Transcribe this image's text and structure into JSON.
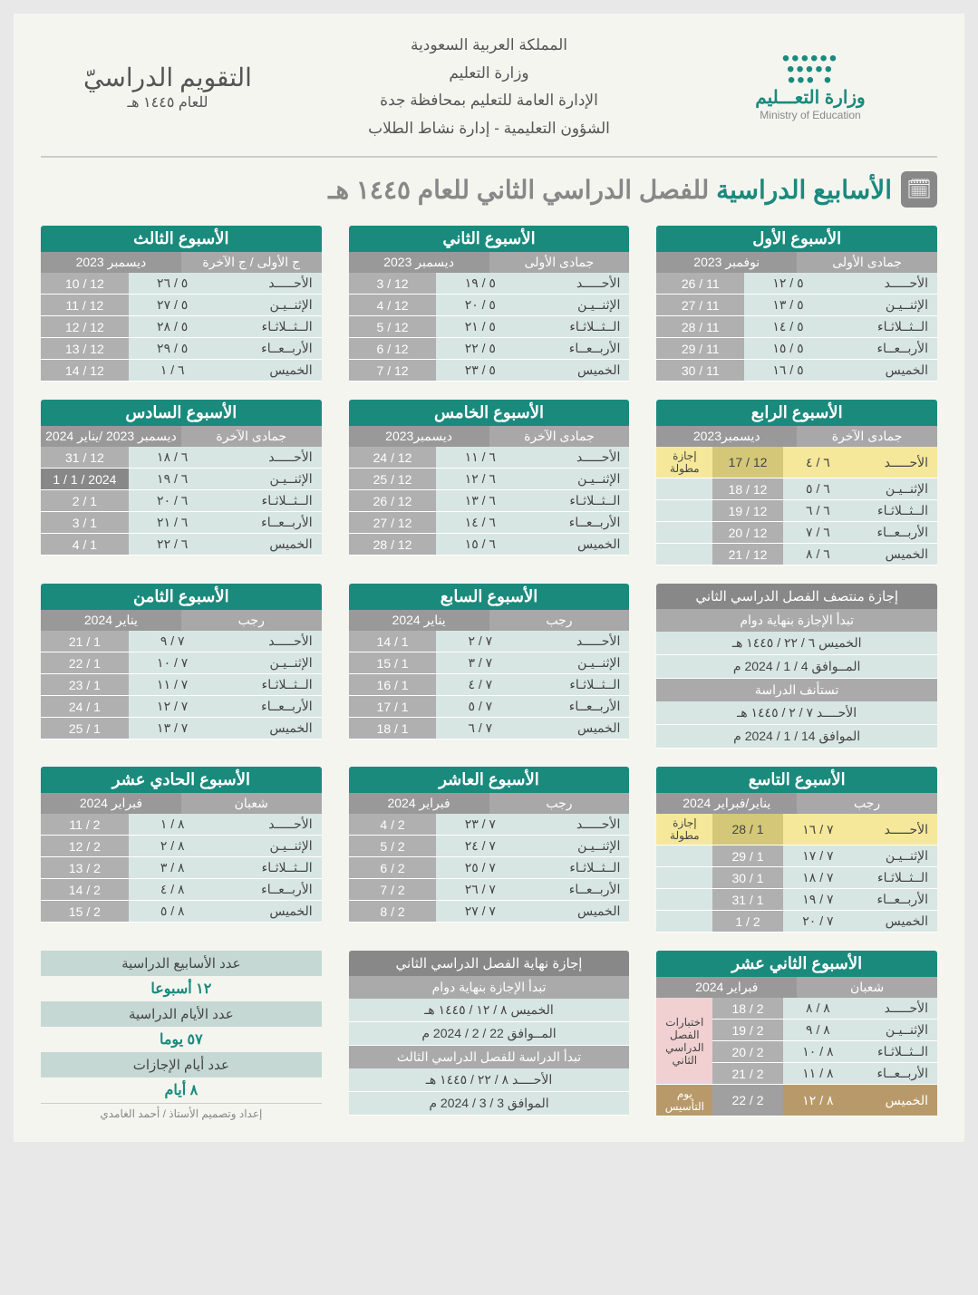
{
  "header": {
    "country": "المملكة العربية السعودية",
    "ministry": "وزارة التعليم",
    "dept1": "الإدارة العامة للتعليم بمحافظة جدة",
    "dept2": "الشؤون التعليمية - إدارة نشاط الطلاب",
    "ministry_label": "وزارة التعـــليم",
    "ministry_sub": "Ministry of Education",
    "cal_title": "التقويم الدراسيّ",
    "cal_sub": "للعام ١٤٤٥ هـ"
  },
  "main_title_a": "الأسابيع الدراسية",
  "main_title_b": " للفصل الدراسي الثاني للعام ١٤٤٥ هـ",
  "days": [
    "الأحـــــد",
    "الإثنــيـن",
    "الــثــلاثـاء",
    "الأربــعــاء",
    "الخميس"
  ],
  "weeks": [
    {
      "title": "الأسبوع الأول",
      "h_month": "جمادى الأولى",
      "g_month": "نوفمبر 2023",
      "rows": [
        {
          "h": "٥ / ١٢",
          "g": "11 / 26"
        },
        {
          "h": "٥ / ١٣",
          "g": "11 / 27"
        },
        {
          "h": "٥ / ١٤",
          "g": "11 / 28"
        },
        {
          "h": "٥ / ١٥",
          "g": "11 / 29"
        },
        {
          "h": "٥ / ١٦",
          "g": "11 / 30"
        }
      ]
    },
    {
      "title": "الأسبوع الثاني",
      "h_month": "جمادى الأولى",
      "g_month": "ديسمبر 2023",
      "rows": [
        {
          "h": "٥ / ١٩",
          "g": "12 / 3"
        },
        {
          "h": "٥ / ٢٠",
          "g": "12 / 4"
        },
        {
          "h": "٥ / ٢١",
          "g": "12 / 5"
        },
        {
          "h": "٥ / ٢٢",
          "g": "12 / 6"
        },
        {
          "h": "٥ / ٢٣",
          "g": "12 / 7"
        }
      ]
    },
    {
      "title": "الأسبوع الثالث",
      "h_month": "ج الأولى / ج الآخرة",
      "g_month": "ديسمبر 2023",
      "rows": [
        {
          "h": "٥ / ٢٦",
          "g": "12 / 10"
        },
        {
          "h": "٥ / ٢٧",
          "g": "12 / 11"
        },
        {
          "h": "٥ / ٢٨",
          "g": "12 / 12"
        },
        {
          "h": "٥ / ٢٩",
          "g": "12 / 13"
        },
        {
          "h": "٦ / ١",
          "g": "12 / 14"
        }
      ]
    },
    {
      "title": "الأسبوع الرابع",
      "h_month": "جمادى الآخرة",
      "g_month": "ديسمبر2023",
      "has_note": true,
      "rows": [
        {
          "h": "٦ / ٤",
          "g": "12 / 17",
          "note": "إجازة مطولة",
          "cls": "row-yellow"
        },
        {
          "h": "٦ / ٥",
          "g": "12 / 18"
        },
        {
          "h": "٦ / ٦",
          "g": "12 / 19"
        },
        {
          "h": "٦ / ٧",
          "g": "12 / 20"
        },
        {
          "h": "٦ / ٨",
          "g": "12 / 21"
        }
      ]
    },
    {
      "title": "الأسبوع الخامس",
      "h_month": "جمادى الآخرة",
      "g_month": "ديسمبر2023",
      "rows": [
        {
          "h": "٦ / ١١",
          "g": "12 / 24"
        },
        {
          "h": "٦ / ١٢",
          "g": "12 / 25"
        },
        {
          "h": "٦ / ١٣",
          "g": "12 / 26"
        },
        {
          "h": "٦ / ١٤",
          "g": "12 / 27"
        },
        {
          "h": "٦ / ١٥",
          "g": "12 / 28"
        }
      ]
    },
    {
      "title": "الأسبوع السادس",
      "h_month": "جمادى الآخرة",
      "g_month": "ديسمبر 2023 /يناير 2024",
      "rows": [
        {
          "h": "٦ / ١٨",
          "g": "12 / 31"
        },
        {
          "h": "٦ / ١٩",
          "g": "2024 / 1 / 1",
          "cls": "row-darkgreg"
        },
        {
          "h": "٦ / ٢٠",
          "g": "1 / 2"
        },
        {
          "h": "٦ / ٢١",
          "g": "1 / 3"
        },
        {
          "h": "٦ / ٢٢",
          "g": "1 / 4"
        }
      ]
    },
    {
      "title": "الأسبوع السابع",
      "h_month": "رجب",
      "g_month": "يناير 2024",
      "rows": [
        {
          "h": "٧ / ٢",
          "g": "1 / 14"
        },
        {
          "h": "٧ / ٣",
          "g": "1 / 15"
        },
        {
          "h": "٧ / ٤",
          "g": "1 / 16"
        },
        {
          "h": "٧ / ٥",
          "g": "1 / 17"
        },
        {
          "h": "٧ / ٦",
          "g": "1 / 18"
        }
      ]
    },
    {
      "title": "الأسبوع الثامن",
      "h_month": "رجب",
      "g_month": "يناير 2024",
      "rows": [
        {
          "h": "٧ / ٩",
          "g": "1 / 21"
        },
        {
          "h": "٧ / ١٠",
          "g": "1 / 22"
        },
        {
          "h": "٧ / ١١",
          "g": "1 / 23"
        },
        {
          "h": "٧ / ١٢",
          "g": "1 / 24"
        },
        {
          "h": "٧ / ١٣",
          "g": "1 / 25"
        }
      ]
    },
    {
      "title": "الأسبوع التاسع",
      "h_month": "رجب",
      "g_month": "يناير/فبراير 2024",
      "has_note": true,
      "rows": [
        {
          "h": "٧ / ١٦",
          "g": "1 / 28",
          "note": "إجازة مطولة",
          "cls": "row-yellow"
        },
        {
          "h": "٧ / ١٧",
          "g": "1 / 29"
        },
        {
          "h": "٧ / ١٨",
          "g": "1 / 30"
        },
        {
          "h": "٧ / ١٩",
          "g": "1 / 31"
        },
        {
          "h": "٧ / ٢٠",
          "g": "2 / 1"
        }
      ]
    },
    {
      "title": "الأسبوع العاشر",
      "h_month": "رجب",
      "g_month": "فبراير 2024",
      "rows": [
        {
          "h": "٧ / ٢٣",
          "g": "2 / 4"
        },
        {
          "h": "٧ / ٢٤",
          "g": "2 / 5"
        },
        {
          "h": "٧ / ٢٥",
          "g": "2 / 6"
        },
        {
          "h": "٧ / ٢٦",
          "g": "2 / 7"
        },
        {
          "h": "٧ / ٢٧",
          "g": "2 / 8"
        }
      ]
    },
    {
      "title": "الأسبوع الحادي عشر",
      "h_month": "شعبان",
      "g_month": "فبراير 2024",
      "rows": [
        {
          "h": "٨ / ١",
          "g": "2 / 11"
        },
        {
          "h": "٨ / ٢",
          "g": "2 / 12"
        },
        {
          "h": "٨ / ٣",
          "g": "2 / 13"
        },
        {
          "h": "٨ / ٤",
          "g": "2 / 14"
        },
        {
          "h": "٨ / ٥",
          "g": "2 / 15"
        }
      ]
    },
    {
      "title": "الأسبوع الثاني عشر",
      "h_month": "شعبان",
      "g_month": "فبراير 2024",
      "has_note": true,
      "note_span": "اختبارات الفصل الدراسي الثاني",
      "rows": [
        {
          "h": "٨ / ٨",
          "g": "2 / 18",
          "cls": "row-pink"
        },
        {
          "h": "٨ / ٩",
          "g": "2 / 19",
          "cls": "row-pink"
        },
        {
          "h": "٨ / ١٠",
          "g": "2 / 20",
          "cls": "row-pink"
        },
        {
          "h": "٨ / ١١",
          "g": "2 / 21",
          "cls": "row-pink"
        },
        {
          "h": "٨ / ١٢",
          "g": "2 / 22",
          "note": "يوم التأسيس",
          "cls": "row-brown"
        }
      ]
    }
  ],
  "mid_break": {
    "title": "إجازة منتصف الفصل الدراسي الثاني",
    "sub1": "تبدأ الإجازة بنهاية دوام",
    "r1": "الخميس   ٦ / ٢٢ / ١٤٤٥ هـ",
    "r2": "المــوافق   4 / 1 / 2024 م",
    "sub2": "تستأنف الدراسة",
    "r3": "الأحــــد   ٧ / ٢ / ١٤٤٥ هـ",
    "r4": "الموافق   14 / 1 / 2024 م"
  },
  "end_break": {
    "title": "إجازة نهاية الفصل الدراسي الثاني",
    "sub1": "تبدأ الإجازة بنهاية دوام",
    "r1": "الخميس   ٨ / ١٢ / ١٤٤٥ هـ",
    "r2": "المــوافق   22 / 2 / 2024 م",
    "sub2": "تبدأ الدراسة للفصل الدراسي الثالث",
    "r3": "الأحــــد   ٨ / ٢٢ / ١٤٤٥ هـ",
    "r4": "الموافق   3 / 3 / 2024 م"
  },
  "summary": {
    "h1": "عدد الأسابيع الدراسية",
    "v1": "١٢ أسبوعا",
    "h2": "عدد الأيام الدراسية",
    "v2": "٥٧ يوما",
    "h3": "عدد أيام الإجازات",
    "v3": "٨ أيام",
    "credit": "إعداد وتصميم الأستاذ / أحمد الغامدي"
  }
}
